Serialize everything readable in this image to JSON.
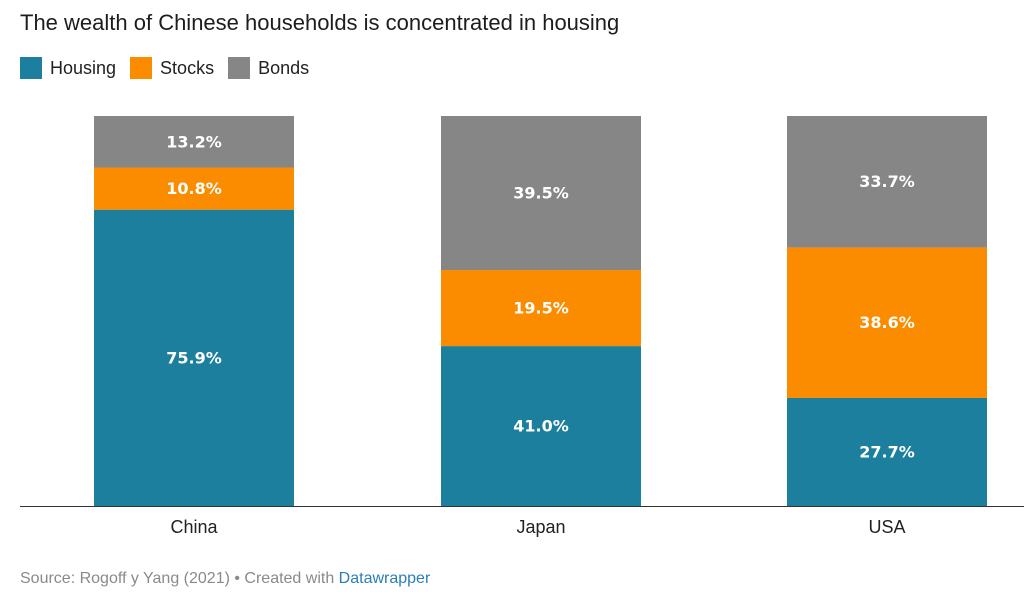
{
  "chart_data": {
    "type": "bar",
    "stacked": true,
    "normalized": true,
    "title": "The wealth of Chinese households is concentrated in housing",
    "categories": [
      "China",
      "Japan",
      "USA"
    ],
    "series": [
      {
        "name": "Housing",
        "color": "#1d7f9e",
        "values": [
          75.9,
          41.0,
          27.7
        ],
        "labels": [
          "75.9%",
          "41.0%",
          "27.7%"
        ]
      },
      {
        "name": "Stocks",
        "color": "#fb8c00",
        "values": [
          10.8,
          19.5,
          38.6
        ],
        "labels": [
          "10.8%",
          "19.5%",
          "38.6%"
        ]
      },
      {
        "name": "Bonds",
        "color": "#868686",
        "values": [
          13.2,
          39.5,
          33.7
        ],
        "labels": [
          "13.2%",
          "39.5%",
          "33.7%"
        ]
      }
    ],
    "ylim": [
      0,
      100
    ],
    "legend_position": "top-left",
    "grid": false
  },
  "footer": {
    "source_text": "Source: Rogoff y Yang (2021) • Created with ",
    "tool": "Datawrapper"
  }
}
